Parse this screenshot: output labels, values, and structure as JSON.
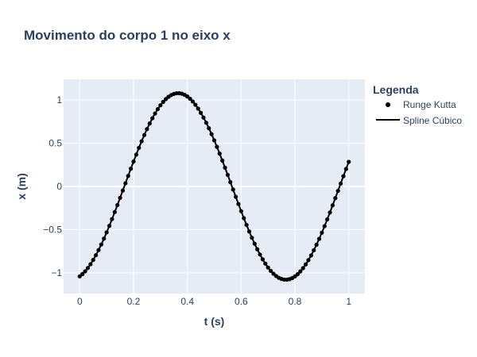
{
  "chart_data": {
    "type": "line",
    "title": "Movimento do corpo 1 no eixo x",
    "xlabel": "t (s)",
    "ylabel": "x (m)",
    "xlim": [
      -0.06,
      1.06
    ],
    "ylim": [
      -1.24,
      1.24
    ],
    "xticks": [
      0,
      0.2,
      0.4,
      0.6,
      0.8,
      1
    ],
    "xtick_labels": [
      "0",
      "0.2",
      "0.4",
      "0.6",
      "0.8",
      "1"
    ],
    "yticks": [
      -1,
      -0.5,
      0,
      0.5,
      1
    ],
    "ytick_labels": [
      "−1",
      "−0.5",
      "0",
      "0.5",
      "1"
    ],
    "grid": true,
    "legend": {
      "title": "Legenda",
      "position": "right",
      "entries": [
        "Runge Kutta",
        "Spline Cúbico"
      ]
    },
    "series": [
      {
        "name": "Runge Kutta",
        "mode": "markers",
        "color": "#000000",
        "model": {
          "A": 1.08,
          "omega": 7.85,
          "phi": -1.3,
          "t_start": 0,
          "t_end": 1,
          "n": 101
        }
      },
      {
        "name": "Spline Cúbico",
        "mode": "lines",
        "color": "#000000",
        "model": {
          "A": 1.08,
          "omega": 7.85,
          "phi": -1.3,
          "t_start": 0,
          "t_end": 1,
          "n": 301
        }
      }
    ],
    "plot_background": "#e5ecf6",
    "grid_color": "#ffffff"
  }
}
